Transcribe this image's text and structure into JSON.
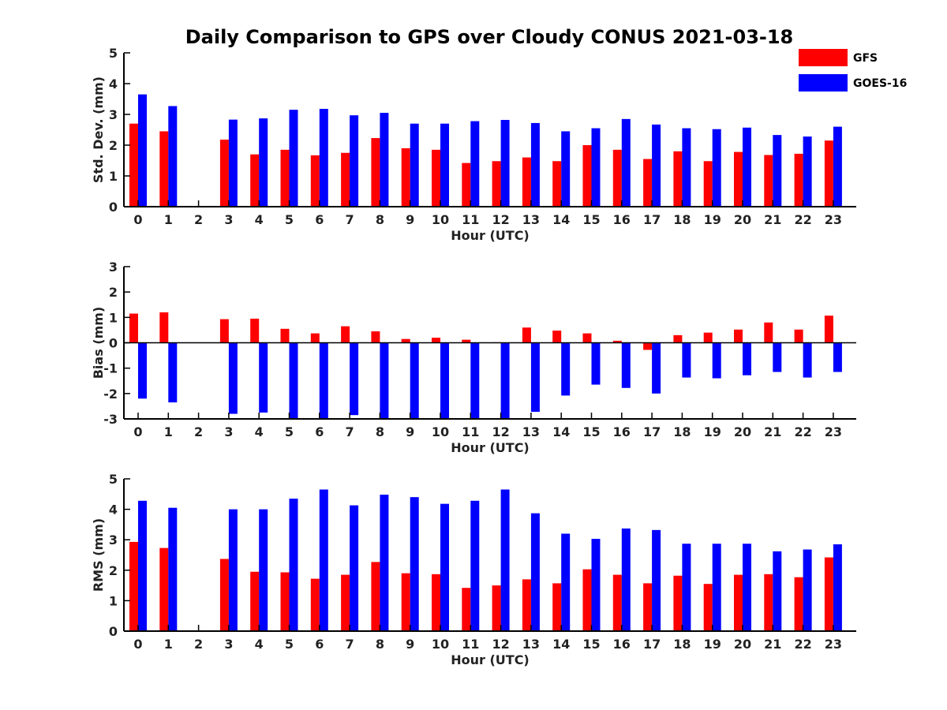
{
  "chart_data": {
    "title": "Daily Comparison to GPS over Cloudy CONUS 2021-03-18",
    "type": "bar",
    "legend": {
      "placement": "top-right",
      "entries": [
        {
          "name": "GFS",
          "color": "#ff0000"
        },
        {
          "name": "GOES-16",
          "color": "#0000ff"
        }
      ]
    },
    "panels": [
      {
        "type": "bar",
        "ylabel": "Std. Dev. (mm)",
        "xlabel": "Hour (UTC)",
        "ylim": [
          0,
          5
        ],
        "yticks": [
          0,
          1,
          2,
          3,
          4,
          5
        ],
        "categories": [
          0,
          1,
          2,
          3,
          4,
          5,
          6,
          7,
          8,
          9,
          10,
          11,
          12,
          13,
          14,
          15,
          16,
          17,
          18,
          19,
          20,
          21,
          22,
          23
        ],
        "series": [
          {
            "name": "GFS",
            "values": [
              2.7,
              2.45,
              null,
              2.18,
              1.7,
              1.85,
              1.67,
              1.75,
              2.23,
              1.9,
              1.85,
              1.42,
              1.48,
              1.6,
              1.48,
              2.0,
              1.85,
              1.55,
              1.8,
              1.48,
              1.78,
              1.68,
              1.72,
              2.15
            ]
          },
          {
            "name": "GOES-16",
            "values": [
              3.65,
              3.27,
              null,
              2.83,
              2.87,
              3.15,
              3.18,
              2.97,
              3.05,
              2.7,
              2.7,
              2.78,
              2.82,
              2.72,
              2.45,
              2.55,
              2.85,
              2.67,
              2.55,
              2.52,
              2.57,
              2.33,
              2.28,
              2.6
            ]
          }
        ]
      },
      {
        "type": "bar",
        "ylabel": "Bias (mm)",
        "xlabel": "Hour (UTC)",
        "ylim": [
          -3,
          3
        ],
        "yticks": [
          -3,
          -2,
          -1,
          0,
          1,
          2,
          3
        ],
        "categories": [
          0,
          1,
          2,
          3,
          4,
          5,
          6,
          7,
          8,
          9,
          10,
          11,
          12,
          13,
          14,
          15,
          16,
          17,
          18,
          19,
          20,
          21,
          22,
          23
        ],
        "series": [
          {
            "name": "GFS",
            "values": [
              1.15,
              1.2,
              null,
              0.93,
              0.95,
              0.55,
              0.37,
              0.65,
              0.45,
              0.15,
              0.2,
              0.12,
              0.02,
              0.6,
              0.48,
              0.37,
              0.08,
              -0.28,
              0.3,
              0.4,
              0.52,
              0.8,
              0.52,
              1.07
            ]
          },
          {
            "name": "GOES-16",
            "values": [
              -2.2,
              -2.35,
              null,
              -2.8,
              -2.75,
              -3.0,
              -3.0,
              -2.85,
              -3.0,
              -3.0,
              -3.0,
              -3.0,
              -3.0,
              -2.72,
              -2.08,
              -1.65,
              -1.78,
              -2.0,
              -1.37,
              -1.4,
              -1.28,
              -1.15,
              -1.37,
              -1.15
            ]
          }
        ]
      },
      {
        "type": "bar",
        "ylabel": "RMS (mm)",
        "xlabel": "Hour (UTC)",
        "ylim": [
          0,
          5
        ],
        "yticks": [
          0,
          1,
          2,
          3,
          4,
          5
        ],
        "categories": [
          0,
          1,
          2,
          3,
          4,
          5,
          6,
          7,
          8,
          9,
          10,
          11,
          12,
          13,
          14,
          15,
          16,
          17,
          18,
          19,
          20,
          21,
          22,
          23
        ],
        "series": [
          {
            "name": "GFS",
            "values": [
              2.93,
              2.73,
              null,
              2.37,
              1.95,
              1.93,
              1.72,
              1.85,
              2.27,
              1.9,
              1.87,
              1.42,
              1.5,
              1.7,
              1.57,
              2.03,
              1.85,
              1.57,
              1.82,
              1.55,
              1.85,
              1.87,
              1.77,
              2.42
            ]
          },
          {
            "name": "GOES-16",
            "values": [
              4.28,
              4.05,
              null,
              4.0,
              4.0,
              4.35,
              4.65,
              4.13,
              4.48,
              4.4,
              4.18,
              4.28,
              4.65,
              3.87,
              3.2,
              3.03,
              3.37,
              3.32,
              2.87,
              2.87,
              2.87,
              2.62,
              2.68,
              2.85
            ]
          }
        ]
      }
    ]
  }
}
